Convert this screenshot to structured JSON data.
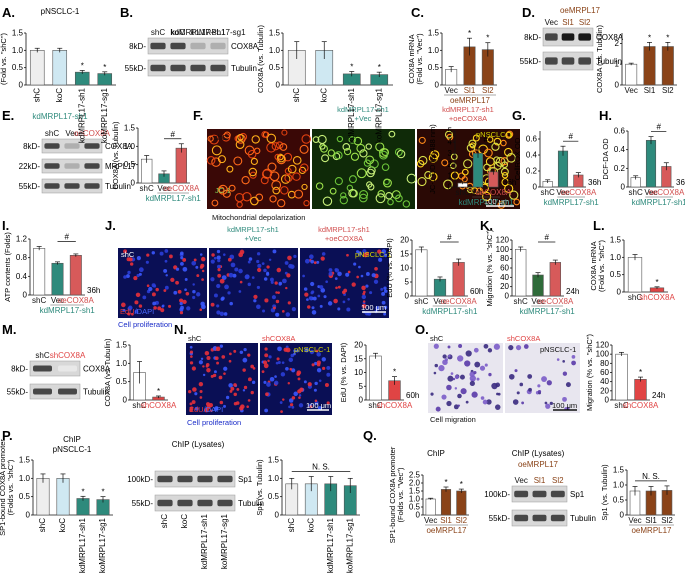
{
  "colors": {
    "shC": "#eeeeee",
    "koC": "#cfe8f2",
    "kd": "#2e8a7c",
    "vec": "#ffffff",
    "oeMRPL17": "#8a4318",
    "green_bar": "#2f6b3a",
    "oeCOX8A": "#d75a5a",
    "shCOX8A": "#e04444",
    "kd_text": "#2e8a7c",
    "oe_text": "#d14e4e",
    "oe17_text": "#8a4318",
    "pnsclc_text": "#d4d400"
  },
  "panels": {
    "A": {
      "label": "A.",
      "title": "pNSCLC-1"
    },
    "B": {
      "label": "B."
    },
    "C": {
      "label": "C."
    },
    "D": {
      "label": "D.",
      "header": "oeMRPL17"
    },
    "E": {
      "label": "E.",
      "header": "kdMRPL17-sh1"
    },
    "F": {
      "label": "F.",
      "cap": "Mitochondrial depolarization",
      "img1": "shC",
      "img2": "kdMRPL17-sh1\n+Vec",
      "img2a": "kdMRPL17-sh1",
      "img2b": "+Vec",
      "img3a": "kdMRPL17-sh1",
      "img3b": "+oeCOX8A",
      "img3c": "pNSCLC-1",
      "scale": "100 μm",
      "stain": "JC-1"
    },
    "G": {
      "label": "G."
    },
    "H": {
      "label": "H."
    },
    "I": {
      "label": "I."
    },
    "J": {
      "label": "J.",
      "cap": "Cell proliferation",
      "img1": "shC",
      "img2a": "kdMRPL17-sh1",
      "img2b": "+Vec",
      "img3a": "kdMRPL17-sh1",
      "img3b": "+oeCOX8A",
      "img3c": "pNSCLC-1",
      "scale": "100 μm",
      "stainA": "EdU",
      "stainB": "/DAPI"
    },
    "K": {
      "label": "K."
    },
    "L": {
      "label": "L."
    },
    "M": {
      "label": "M."
    },
    "N": {
      "label": "N.",
      "cap": "Cell proliferation",
      "img1": "shC",
      "img2a": "shCOX8A",
      "img2b": "pNSCLC-1",
      "scale": "100 μm",
      "stainA": "EdU",
      "stainB": "/DAPI"
    },
    "O": {
      "label": "O.",
      "cap": "Cell migration",
      "img1": "shC",
      "img2a": "shCOX8A",
      "img2b": "pNSCLC-1",
      "scale": "100 μm"
    },
    "P": {
      "label": "P.",
      "title1": "ChIP",
      "title2": "pNSCLC-1",
      "title3": "ChIP (Lysates)"
    },
    "Q": {
      "label": "Q.",
      "title1": "ChIP",
      "title3": "ChIP (Lysates)",
      "header": "oeMRPL17"
    }
  },
  "blots": {
    "B": {
      "bands": [
        [
          "8kD-",
          "COX8A"
        ],
        [
          "55kD-",
          "Tubulin"
        ]
      ],
      "lanes": [
        "shC",
        "koC",
        "kdMRPL17-sh1",
        "koMRPL17-sg1"
      ]
    },
    "D": {
      "bands": [
        [
          "8kD-",
          "COX8A"
        ],
        [
          "55kD-",
          "Tubulin"
        ]
      ],
      "lanes": [
        "Vec",
        "Sl1",
        "Sl2"
      ]
    },
    "E": {
      "bands": [
        [
          "8kD-",
          "COX8A"
        ],
        [
          "22kD-",
          "MRPL17"
        ],
        [
          "55kD-",
          "Tubulin"
        ]
      ],
      "lanes": [
        "shC",
        "Vec",
        "oeCOX8A"
      ]
    },
    "M": {
      "bands": [
        [
          "8kD-",
          "COX8A"
        ],
        [
          "55kD-",
          "Tubulin"
        ]
      ],
      "lanes": [
        "shC",
        "shCOX8A"
      ]
    },
    "P": {
      "bands": [
        [
          "100kD-",
          "Sp1"
        ],
        [
          "55kD-",
          "Tubulin"
        ]
      ],
      "lanes": [
        "shC",
        "koC",
        "kdMRPL17-sh1",
        "koMRPL17-sg1"
      ]
    },
    "Q": {
      "bands": [
        [
          "100kD-",
          "Sp1"
        ],
        [
          "55kD-",
          "Tubulin"
        ]
      ],
      "lanes": [
        "Vec",
        "Sl1",
        "Sl2"
      ]
    }
  },
  "chart_data": [
    {
      "id": "A",
      "type": "bar",
      "ylabel": "COX8A mRNA\n(Fold vs. \"shC\")",
      "ylim": [
        0,
        1.5
      ],
      "ticks": [
        "0",
        "0.5",
        "1.0",
        "1.5"
      ],
      "categories": [
        "shC",
        "koC",
        "kdMRPL17-sh1",
        "koMRPL17-sg1"
      ],
      "values": [
        1.0,
        1.0,
        0.37,
        0.33
      ],
      "errors": [
        0.06,
        0.06,
        0.05,
        0.05
      ],
      "annot": [
        "",
        "",
        "*",
        "*"
      ]
    },
    {
      "id": "B",
      "type": "bar",
      "ylabel": "COX8A (vs. Tubulin)",
      "ylim": [
        0,
        1.5
      ],
      "ticks": [
        "0",
        "0.5",
        "1.0",
        "1.5"
      ],
      "categories": [
        "shC",
        "koC",
        "kdMRPL17-sh1",
        "koMRPL17-sg1"
      ],
      "values": [
        1.0,
        1.0,
        0.32,
        0.3
      ],
      "errors": [
        0.25,
        0.25,
        0.07,
        0.07
      ],
      "annot": [
        "",
        "",
        "*",
        "*"
      ]
    },
    {
      "id": "C",
      "type": "bar",
      "ylabel": "COX8A mRNA\n(Fold vs. \"Vec\")",
      "ylim": [
        0,
        1.5
      ],
      "ticks": [
        "0",
        "0.5",
        "1.0",
        "1.5"
      ],
      "categories": [
        "Vec",
        "Sl1",
        "Sl2"
      ],
      "values": [
        0.45,
        1.1,
        1.02
      ],
      "errors": [
        0.08,
        0.25,
        0.2
      ],
      "annot": [
        "",
        "*",
        "*"
      ],
      "sub": "oeMRPL17"
    },
    {
      "id": "D",
      "type": "bar",
      "ylabel": "COX8A (vs. Tubulin)",
      "ylim": [
        0,
        2.5
      ],
      "ticks": [
        "0",
        "1",
        "2"
      ],
      "categories": [
        "Vec",
        "Sl1",
        "Sl2"
      ],
      "values": [
        1.0,
        1.85,
        1.85
      ],
      "errors": [
        0.05,
        0.2,
        0.2
      ],
      "annot": [
        "",
        "*",
        "*"
      ]
    },
    {
      "id": "E",
      "type": "bar",
      "ylabel": "COX8A (vs. Tubulin)",
      "ylim": [
        0,
        1.5
      ],
      "ticks": [
        "0",
        "0.5",
        "1.0",
        "1.5"
      ],
      "categories": [
        "shC",
        "Vec",
        "oeCOX8A"
      ],
      "values": [
        0.65,
        0.25,
        0.95
      ],
      "errors": [
        0.1,
        0.08,
        0.12
      ],
      "annot": [
        "#"
      ],
      "sub": "kdMRPL17-sh1"
    },
    {
      "id": "F",
      "type": "bar",
      "ylabel": "JC-1 OD (at 488 nm)",
      "ylim": [
        0,
        5
      ],
      "ticks": [
        "0",
        "1",
        "2",
        "3",
        "4",
        "5"
      ],
      "categories": [
        "shC",
        "Vec",
        "oeCOX8A"
      ],
      "values": [
        0.35,
        3.0,
        1.35
      ],
      "errors": [
        0.1,
        0.4,
        0.25
      ],
      "annot": [
        "#"
      ],
      "sub": "kdMRPL17-sh1",
      "note": "36h"
    },
    {
      "id": "G",
      "type": "bar",
      "ylabel": "CellROX OD",
      "ylim": [
        0,
        0.7
      ],
      "ticks": [
        "0",
        "0.2",
        "0.4",
        "0.6"
      ],
      "categories": [
        "shC",
        "Vec",
        "oeCOX8A"
      ],
      "values": [
        0.07,
        0.45,
        0.15
      ],
      "errors": [
        0.02,
        0.06,
        0.03
      ],
      "annot": [
        "#"
      ],
      "sub": "kdMRPL17-sh1",
      "note": "36h"
    },
    {
      "id": "H",
      "type": "bar",
      "ylabel": "DCF-DA OD",
      "ylim": [
        0,
        0.6
      ],
      "ticks": [
        "0",
        "0.2",
        "0.4",
        "0.6"
      ],
      "categories": [
        "shC",
        "Vec",
        "oeCOX8A"
      ],
      "values": [
        0.1,
        0.5,
        0.22
      ],
      "errors": [
        0.02,
        0.04,
        0.04
      ],
      "annot": [
        "#"
      ],
      "sub": "kdMRPL17-sh1",
      "note": "36h"
    },
    {
      "id": "I",
      "type": "bar",
      "ylabel": "ATP contents (Folds)",
      "ylim": [
        0,
        1.2
      ],
      "ticks": [
        "0",
        "0.4",
        "0.8",
        "1.2"
      ],
      "categories": [
        "shC",
        "Vec",
        "oeCOX8A"
      ],
      "values": [
        1.0,
        0.68,
        0.85
      ],
      "errors": [
        0.04,
        0.03,
        0.03
      ],
      "annot": [
        "#"
      ],
      "sub": "kdMRPL17-sh1",
      "note": "36h"
    },
    {
      "id": "J",
      "type": "bar",
      "ylabel": "EdU (% vs. DAPI)",
      "ylim": [
        0,
        20
      ],
      "ticks": [
        "0",
        "5",
        "10",
        "15",
        "20"
      ],
      "categories": [
        "shC",
        "Vec",
        "oeCOX8A"
      ],
      "values": [
        16.5,
        6.0,
        12.0
      ],
      "errors": [
        1.0,
        0.8,
        1.2
      ],
      "annot": [
        "#"
      ],
      "sub": "kdMRPL17-sh1",
      "note": "60h"
    },
    {
      "id": "K",
      "type": "bar",
      "ylabel": "Migration (% vs. \"shC\")",
      "ylim": [
        0,
        120
      ],
      "ticks": [
        "0",
        "20",
        "40",
        "60",
        "80",
        "100",
        "120"
      ],
      "categories": [
        "shC",
        "Vec",
        "oeCOX8A"
      ],
      "values": [
        100,
        45,
        72
      ],
      "errors": [
        5,
        5,
        5
      ],
      "annot": [
        "#"
      ],
      "sub": "kdMRPL17-sh1",
      "note": "24h"
    },
    {
      "id": "L",
      "type": "bar",
      "ylabel": "COX8A mRNA\n(Fold vs. \"shC\")",
      "ylim": [
        0,
        1.5
      ],
      "ticks": [
        "0",
        "0.5",
        "1.0",
        "1.5"
      ],
      "categories": [
        "shC",
        "shCOX8A"
      ],
      "values": [
        1.0,
        0.12
      ],
      "errors": [
        0.08,
        0.03
      ],
      "annot": [
        "",
        "*"
      ]
    },
    {
      "id": "M",
      "type": "bar",
      "ylabel": "COX8A (vs. Tubulin)",
      "ylim": [
        0,
        1.5
      ],
      "ticks": [
        "0",
        "0.5",
        "1.0",
        "1.5"
      ],
      "categories": [
        "shC",
        "shCOX8A"
      ],
      "values": [
        0.75,
        0.08
      ],
      "errors": [
        0.3,
        0.03
      ],
      "annot": [
        "",
        "*"
      ]
    },
    {
      "id": "N",
      "type": "bar",
      "ylabel": "EdU (% vs. DAPI)",
      "ylim": [
        0,
        20
      ],
      "ticks": [
        "0",
        "5",
        "10",
        "15",
        "20"
      ],
      "categories": [
        "shC",
        "shCOX8A"
      ],
      "values": [
        16.0,
        7.0
      ],
      "errors": [
        1.0,
        1.5
      ],
      "annot": [
        "",
        "*"
      ],
      "note": "60h"
    },
    {
      "id": "O",
      "type": "bar",
      "ylabel": "Migration (% vs. \"shC\")",
      "ylim": [
        0,
        120
      ],
      "ticks": [
        "0",
        "20",
        "40",
        "60",
        "80",
        "100",
        "120"
      ],
      "categories": [
        "shC",
        "shCOX8A"
      ],
      "values": [
        100,
        45
      ],
      "errors": [
        4,
        5
      ],
      "annot": [
        "",
        "*"
      ],
      "note": "24h"
    },
    {
      "id": "P1",
      "type": "bar",
      "ylabel": "SP1-bound COX8A promoter\n(Folds vs. \"shC\")",
      "ylim": [
        0,
        1.5
      ],
      "ticks": [
        "0",
        "0.5",
        "1.0",
        "1.5"
      ],
      "categories": [
        "shC",
        "koC",
        "kdMRPL17-sh1",
        "koMRPL17-sg1"
      ],
      "values": [
        1.0,
        1.0,
        0.45,
        0.42
      ],
      "errors": [
        0.12,
        0.12,
        0.06,
        0.08
      ],
      "annot": [
        "",
        "",
        "*",
        "*"
      ]
    },
    {
      "id": "P2",
      "type": "bar",
      "ylabel": "Sp1 (vs. Tubulin)",
      "ylim": [
        0,
        1.5
      ],
      "ticks": [
        "0",
        "0.5",
        "1.0",
        "1.5"
      ],
      "categories": [
        "shC",
        "koC",
        "kdMRPL17-sh1",
        "koMRPL17-sg1"
      ],
      "values": [
        0.85,
        0.85,
        0.85,
        0.8
      ],
      "errors": [
        0.15,
        0.2,
        0.2,
        0.2
      ],
      "annot": [
        "N. S."
      ]
    },
    {
      "id": "Q1",
      "type": "bar",
      "ylabel": "SP1-bound COX8A promoter\n(Folds vs. \"Vec\")",
      "ylim": [
        0,
        2.5
      ],
      "ticks": [
        "0",
        "0.5",
        "1.0",
        "1.5",
        "2.0",
        "2.5"
      ],
      "categories": [
        "Vec",
        "Sl1",
        "Sl2"
      ],
      "values": [
        1.0,
        1.6,
        1.5
      ],
      "errors": [
        0.05,
        0.15,
        0.12
      ],
      "annot": [
        "",
        "*",
        "*"
      ],
      "sub": "oeMRPL17"
    },
    {
      "id": "Q2",
      "type": "bar",
      "ylabel": "Sp1 (vs. Tubulin)",
      "ylim": [
        0,
        1.5
      ],
      "ticks": [
        "0",
        "0.5",
        "1.0",
        "1.5"
      ],
      "categories": [
        "Vec",
        "Sl1",
        "Sl2"
      ],
      "values": [
        0.8,
        0.8,
        0.82
      ],
      "errors": [
        0.15,
        0.15,
        0.15
      ],
      "annot": [
        "N. S."
      ],
      "sub": "oeMRPL17"
    }
  ]
}
